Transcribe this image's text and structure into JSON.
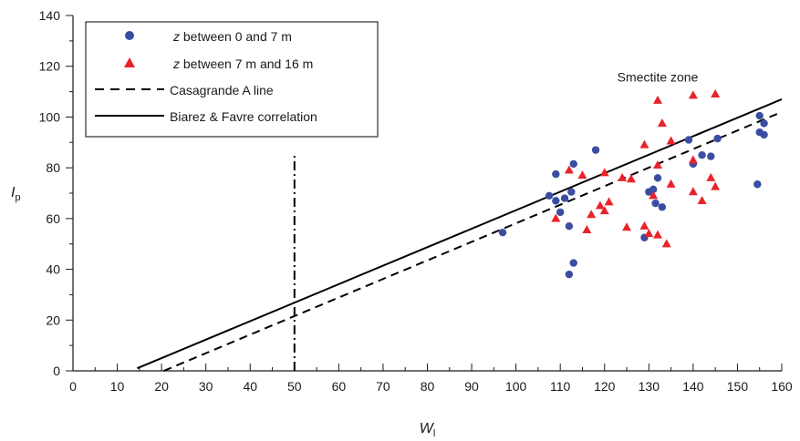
{
  "chart_data": {
    "type": "scatter",
    "xlabel": "W",
    "xlabel_sub": "l",
    "ylabel": "I",
    "ylabel_sub": "p",
    "xlim": [
      0,
      160
    ],
    "ylim": [
      0,
      140
    ],
    "x_ticks": [
      0,
      10,
      20,
      30,
      40,
      50,
      60,
      70,
      80,
      90,
      100,
      110,
      120,
      130,
      140,
      150,
      160
    ],
    "y_ticks": [
      0,
      20,
      40,
      60,
      80,
      100,
      120,
      140
    ],
    "grid": false,
    "legend_position": "top-left",
    "annotations": [
      {
        "text": "Smectite zone",
        "x": 132,
        "y": 114
      }
    ],
    "series": [
      {
        "name_italic": "z",
        "name": " between 0 and 7 m",
        "marker": "circle",
        "color": "#3a4ea1",
        "points": [
          [
            97,
            54.5
          ],
          [
            107.5,
            69
          ],
          [
            109,
            67
          ],
          [
            109,
            77.5
          ],
          [
            110,
            62.5
          ],
          [
            111,
            68
          ],
          [
            112,
            57
          ],
          [
            112,
            38
          ],
          [
            112.5,
            70.5
          ],
          [
            113,
            81.5
          ],
          [
            113,
            42.5
          ],
          [
            118,
            87
          ],
          [
            129,
            52.5
          ],
          [
            130,
            70.5
          ],
          [
            131,
            71.5
          ],
          [
            131.5,
            66
          ],
          [
            132,
            76
          ],
          [
            133,
            64.5
          ],
          [
            139,
            91
          ],
          [
            140,
            81.5
          ],
          [
            142,
            85
          ],
          [
            144,
            84.5
          ],
          [
            145.5,
            91.5
          ],
          [
            154.5,
            73.5
          ],
          [
            155,
            100.5
          ],
          [
            155,
            94
          ],
          [
            156,
            97.5
          ],
          [
            156,
            93
          ]
        ]
      },
      {
        "name_italic": "z",
        "name": " between 7 m and 16 m",
        "marker": "triangle",
        "color": "#e8242a",
        "points": [
          [
            109,
            60
          ],
          [
            112,
            79
          ],
          [
            115,
            77
          ],
          [
            116,
            55.5
          ],
          [
            117,
            61.5
          ],
          [
            119,
            65
          ],
          [
            120,
            78
          ],
          [
            120,
            63
          ],
          [
            121,
            66.5
          ],
          [
            124,
            76
          ],
          [
            125,
            56.5
          ],
          [
            126,
            75.5
          ],
          [
            129,
            89
          ],
          [
            129,
            57
          ],
          [
            130,
            54
          ],
          [
            131,
            69
          ],
          [
            132,
            106.5
          ],
          [
            132,
            81
          ],
          [
            132,
            53.5
          ],
          [
            133,
            97.5
          ],
          [
            134,
            50
          ],
          [
            135,
            90.5
          ],
          [
            135,
            73.5
          ],
          [
            140,
            108.5
          ],
          [
            140,
            83
          ],
          [
            140,
            70.5
          ],
          [
            142,
            67
          ],
          [
            144,
            76
          ],
          [
            145,
            109
          ],
          [
            145,
            72.5
          ]
        ]
      }
    ],
    "lines": [
      {
        "name": "Casagrande A line",
        "style": "dashed",
        "points": [
          [
            20.5,
            0
          ],
          [
            160,
            102
          ]
        ]
      },
      {
        "name": "Biarez & Favre correlation",
        "style": "solid",
        "points": [
          [
            14.5,
            1
          ],
          [
            160,
            107
          ]
        ]
      },
      {
        "name": "",
        "style": "dashdot",
        "points": [
          [
            50,
            0
          ],
          [
            50,
            86
          ]
        ]
      }
    ],
    "legend_entries": [
      {
        "italic": "z",
        "text": " between 0 and 7 m",
        "symbol": "circle"
      },
      {
        "italic": "z",
        "text": " between 7 m and 16 m",
        "symbol": "triangle"
      },
      {
        "italic": "",
        "text": "Casagrande A line",
        "symbol": "dashed"
      },
      {
        "italic": "",
        "text": "Biarez & Favre correlation",
        "symbol": "solid"
      }
    ]
  }
}
